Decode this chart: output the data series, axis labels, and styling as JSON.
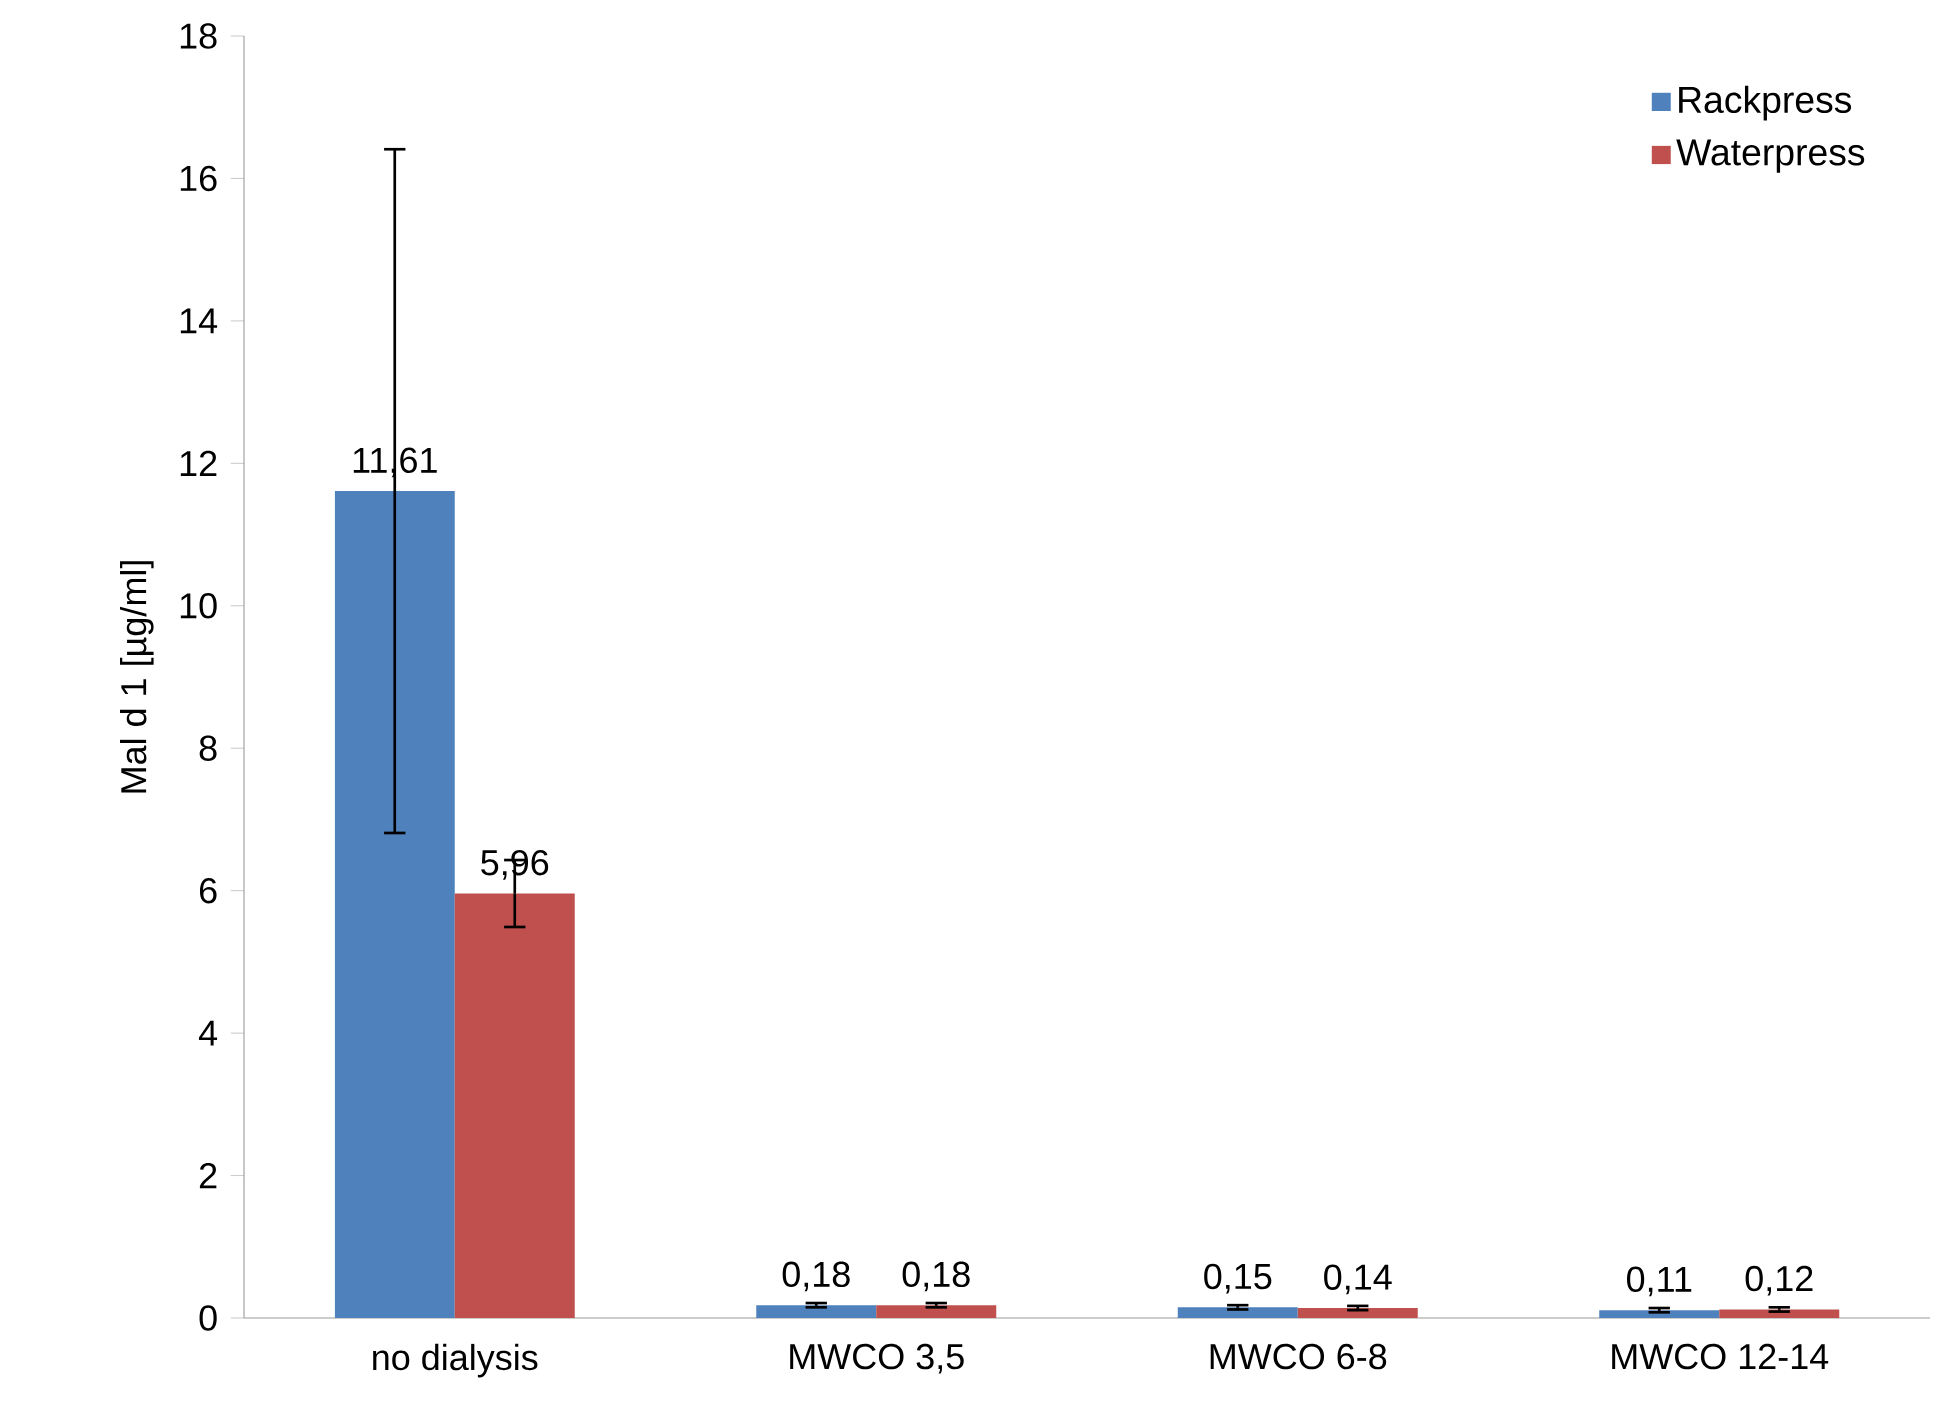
{
  "chart_data": {
    "type": "bar",
    "ylabel": "Mal d 1 [µg/ml]",
    "categories": [
      "no dialysis",
      "MWCO 3,5",
      "MWCO 6-8",
      "MWCO 12-14"
    ],
    "series": [
      {
        "name": "Rackpress",
        "color": "#4f81bd",
        "values": [
          11.61,
          0.18,
          0.15,
          0.11
        ],
        "errors": [
          4.8,
          0.03,
          0.03,
          0.03
        ],
        "value_labels": [
          "11,61",
          "0,18",
          "0,15",
          "0,11"
        ]
      },
      {
        "name": "Waterpress",
        "color": "#c0504d",
        "values": [
          5.96,
          0.18,
          0.14,
          0.12
        ],
        "errors": [
          0.47,
          0.03,
          0.03,
          0.03
        ],
        "value_labels": [
          "5,96",
          "0,18",
          "0,14",
          "0,12"
        ]
      }
    ],
    "ylim": [
      0,
      18
    ],
    "yticks": [
      0,
      2,
      4,
      6,
      8,
      10,
      12,
      14,
      16,
      18
    ],
    "grid": false,
    "legend": "top right"
  }
}
